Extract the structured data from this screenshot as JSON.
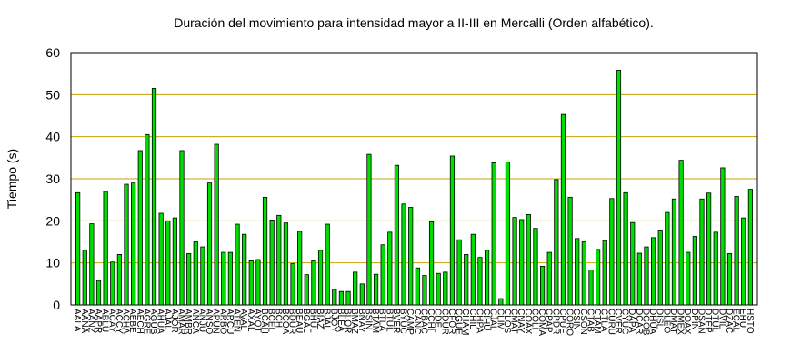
{
  "chart_data": {
    "type": "bar",
    "title": "Duración del movimiento para intensidad mayor a II-III en Mercalli (Orden alfabético).",
    "y_label": "Tiempo (s)",
    "categories": [
      "AALA",
      "AANA",
      "AANZ",
      "AAPR",
      "ABLU",
      "ACAY",
      "ACCY",
      "ACHA",
      "AEBE",
      "AECH",
      "AGRE",
      "AGUS",
      "AHUA",
      "AJAL",
      "AJOR",
      "AMAR",
      "AMBR",
      "ANCA",
      "ANJU",
      "ANSO",
      "APUN",
      "ARBO",
      "ARCU",
      "ATEN",
      "AVAL",
      "AXAL",
      "AYOT",
      "BCAH",
      "BCEL",
      "BCHI",
      "BCOA",
      "BDUR",
      "BEAU",
      "BGAL",
      "BHUL",
      "BIAZ",
      "BJAL",
      "BJOY",
      "BLEA",
      "BLOR",
      "BMAZ",
      "BNAY",
      "BSIN",
      "BTAM",
      "BTLA",
      "BTUL",
      "BVER",
      "BYUC",
      "CAMP",
      "CANC",
      "CBAC",
      "CCHI",
      "CDEL",
      "CDUR",
      "CFOR",
      "CGUE",
      "CHAM",
      "CHIL",
      "CHPA",
      "CIHU",
      "CJAL",
      "CLIM",
      "CLOS",
      "CMAT",
      "CNAY",
      "COAX",
      "COLI",
      "COMA",
      "CPAP",
      "CPDR",
      "CPUE",
      "CQRO",
      "CSIN",
      "CSON",
      "CTAB",
      "CTAM",
      "CTLA",
      "CURU",
      "CVER",
      "CYUC",
      "DAPA",
      "DCAR",
      "DGOB",
      "DHUA",
      "DISL",
      "DLEO",
      "DMAT",
      "DMEX",
      "DOAX",
      "DPIN",
      "DSAN",
      "DTEP",
      "DTUL",
      "DVIL",
      "DZAC",
      "ECAL",
      "EHUI",
      "HSTO"
    ],
    "values": [
      26.7,
      13,
      19.3,
      5.8,
      27,
      10.2,
      12,
      28.7,
      29,
      36.7,
      40.5,
      51.5,
      21.8,
      20,
      20.7,
      36.7,
      12.2,
      15,
      13.8,
      29,
      38.2,
      12.5,
      12.5,
      19.2,
      16.8,
      10.5,
      10.8,
      25.6,
      20.2,
      21.3,
      19.5,
      9.8,
      17.5,
      7.2,
      10.5,
      13,
      19.2,
      3.7,
      3.2,
      3.2,
      7.8,
      5,
      35.8,
      7.3,
      14.3,
      17.3,
      33.2,
      24,
      23.2,
      8.8,
      7,
      19.8,
      7.5,
      7.8,
      35.4,
      15.5,
      12,
      16.8,
      11.3,
      13,
      33.8,
      1.5,
      34,
      20.8,
      20.3,
      21.5,
      18.2,
      9.2,
      12.5,
      29.8,
      45.3,
      25.6,
      15.8,
      15,
      8.3,
      13.2,
      15.3,
      25.3,
      55.8,
      26.7,
      19.6,
      12.3,
      13.8,
      16,
      17.8,
      22,
      25.2,
      34.4,
      12.5,
      16.3,
      25.2,
      26.6,
      17.3,
      32.6,
      12.2,
      25.8,
      20.7,
      27.5
    ],
    "color": "#00dd00",
    "ylim": [
      0,
      60
    ],
    "yticks": [
      0,
      10,
      20,
      30,
      40,
      50,
      60
    ],
    "grid": true,
    "grid_color": "#c8a000"
  }
}
